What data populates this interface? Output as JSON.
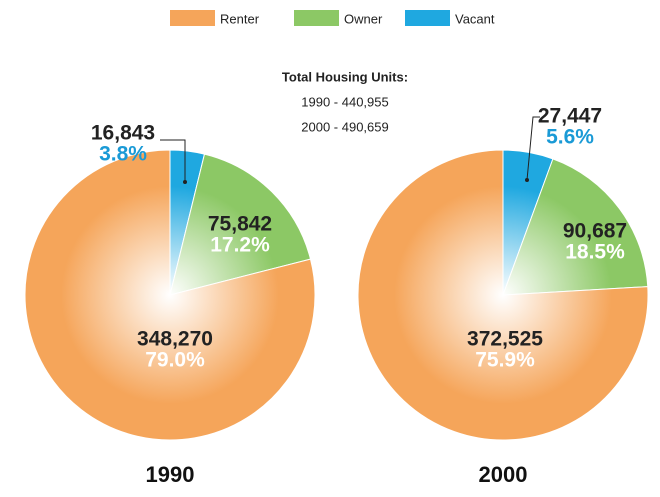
{
  "annotation": {
    "title": "Total Housing Units:",
    "lines": [
      "1990 - 440,955",
      "2000 - 490,659"
    ]
  },
  "chart_data": [
    {
      "type": "pie",
      "title": "1990",
      "categories": [
        "Renter",
        "Owner",
        "Vacant"
      ],
      "colors": [
        "#f5a55a",
        "#8cc865",
        "#1fa8e0"
      ],
      "values": [
        348270,
        75842,
        16843
      ],
      "value_labels": [
        "348,270",
        "75,842",
        "16,843"
      ],
      "percents": [
        79.0,
        17.2,
        3.8
      ],
      "percent_labels": [
        "79.0%",
        "17.2%",
        "3.8%"
      ]
    },
    {
      "type": "pie",
      "title": "2000",
      "categories": [
        "Renter",
        "Owner",
        "Vacant"
      ],
      "colors": [
        "#f5a55a",
        "#8cc865",
        "#1fa8e0"
      ],
      "values": [
        372525,
        90687,
        27447
      ],
      "value_labels": [
        "372,525",
        "90,687",
        "27,447"
      ],
      "percents": [
        75.9,
        18.5,
        5.6
      ],
      "percent_labels": [
        "75.9%",
        "18.5%",
        "5.6%"
      ]
    }
  ]
}
